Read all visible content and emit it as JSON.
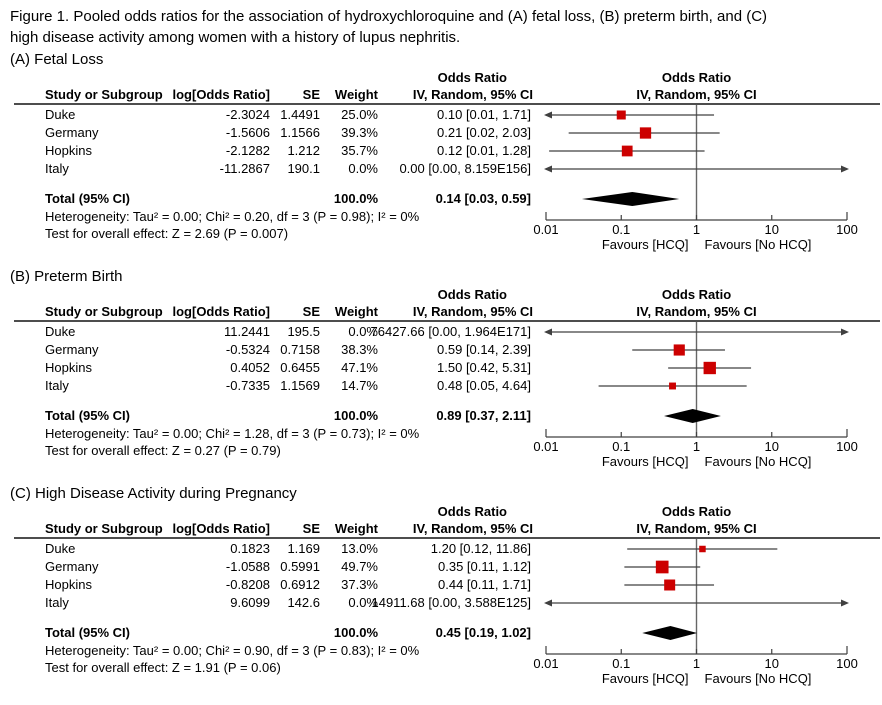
{
  "figure": {
    "title_line1": "Figure 1. Pooled odds ratios for the association of hydroxychloroquine and (A) fetal loss, (B) preterm birth, and (C)",
    "title_line2": "high disease activity among women with a history of lupus nephritis."
  },
  "table_headers": {
    "study": "Study or Subgroup",
    "log_or": "log[Odds Ratio]",
    "se": "SE",
    "weight": "Weight",
    "or_header": "Odds Ratio",
    "ci_method": "IV, Random, 95% CI"
  },
  "axis": {
    "tick_labels": [
      "0.01",
      "0.1",
      "1",
      "10",
      "100"
    ],
    "favours_left": "Favours [HCQ]",
    "favours_right": "Favours [No HCQ]"
  },
  "colors": {
    "square": "#CC0000",
    "diamond": "#000000",
    "line": "#404040",
    "null_line": "#666666",
    "rule": "#4D4D4D"
  },
  "panels": [
    {
      "label": "(A) Fetal Loss",
      "rows": [
        {
          "study": "Duke",
          "log_or": "-2.3024",
          "se": "1.4491",
          "weight": "25.0%",
          "ci": "0.10 [0.01, 1.71]"
        },
        {
          "study": "Germany",
          "log_or": "-1.5606",
          "se": "1.1566",
          "weight": "39.3%",
          "ci": "0.21 [0.02, 2.03]"
        },
        {
          "study": "Hopkins",
          "log_or": "-2.1282",
          "se": "1.212",
          "weight": "35.7%",
          "ci": "0.12 [0.01, 1.28]"
        },
        {
          "study": "Italy",
          "log_or": "-11.2867",
          "se": "190.1",
          "weight": "0.0%",
          "ci": "0.00 [0.00, 8.159E156]"
        }
      ],
      "total": {
        "label": "Total (95% CI)",
        "weight": "100.0%",
        "ci": "0.14 [0.03, 0.59]"
      },
      "heterogeneity": "Heterogeneity: Tau² = 0.00; Chi² = 0.20, df = 3 (P = 0.98); I² = 0%",
      "overall_effect": "Test for overall effect: Z = 2.69 (P = 0.007)"
    },
    {
      "label": "(B) Preterm Birth",
      "rows": [
        {
          "study": "Duke",
          "log_or": "11.2441",
          "se": "195.5",
          "weight": "0.0%",
          "ci": "76427.66 [0.00, 1.964E171]"
        },
        {
          "study": "Germany",
          "log_or": "-0.5324",
          "se": "0.7158",
          "weight": "38.3%",
          "ci": "0.59 [0.14, 2.39]"
        },
        {
          "study": "Hopkins",
          "log_or": "0.4052",
          "se": "0.6455",
          "weight": "47.1%",
          "ci": "1.50 [0.42, 5.31]"
        },
        {
          "study": "Italy",
          "log_or": "-0.7335",
          "se": "1.1569",
          "weight": "14.7%",
          "ci": "0.48 [0.05, 4.64]"
        }
      ],
      "total": {
        "label": "Total (95% CI)",
        "weight": "100.0%",
        "ci": "0.89 [0.37, 2.11]"
      },
      "heterogeneity": "Heterogeneity: Tau² = 0.00; Chi² = 1.28, df = 3 (P = 0.73); I² = 0%",
      "overall_effect": "Test for overall effect: Z = 0.27 (P = 0.79)"
    },
    {
      "label": "(C) High Disease Activity during Pregnancy",
      "rows": [
        {
          "study": "Duke",
          "log_or": "0.1823",
          "se": "1.169",
          "weight": "13.0%",
          "ci": "1.20 [0.12, 11.86]"
        },
        {
          "study": "Germany",
          "log_or": "-1.0588",
          "se": "0.5991",
          "weight": "49.7%",
          "ci": "0.35 [0.11, 1.12]"
        },
        {
          "study": "Hopkins",
          "log_or": "-0.8208",
          "se": "0.6912",
          "weight": "37.3%",
          "ci": "0.44 [0.11, 1.71]"
        },
        {
          "study": "Italy",
          "log_or": "9.6099",
          "se": "142.6",
          "weight": "0.0%",
          "ci": "14911.68 [0.00, 3.588E125]"
        }
      ],
      "total": {
        "label": "Total (95% CI)",
        "weight": "100.0%",
        "ci": "0.45 [0.19, 1.02]"
      },
      "heterogeneity": "Heterogeneity: Tau² = 0.00; Chi² = 0.90, df = 3 (P = 0.83); I² = 0%",
      "overall_effect": "Test for overall effect: Z = 1.91 (P = 0.06)"
    }
  ],
  "chart_data": [
    {
      "type": "forest",
      "title": "(A) Fetal Loss",
      "x_scale": "log10",
      "x_min": 0.01,
      "x_max": 100,
      "x_ticks": [
        0.01,
        0.1,
        1,
        10,
        100
      ],
      "null_value": 1,
      "studies": [
        {
          "name": "Duke",
          "or": 0.1,
          "ci_low": 0.01,
          "ci_high": 1.71,
          "weight": 25.0,
          "arrow_low": true,
          "arrow_high": false
        },
        {
          "name": "Germany",
          "or": 0.21,
          "ci_low": 0.02,
          "ci_high": 2.03,
          "weight": 39.3,
          "arrow_low": false,
          "arrow_high": false
        },
        {
          "name": "Hopkins",
          "or": 0.12,
          "ci_low": 0.011,
          "ci_high": 1.28,
          "weight": 35.7,
          "arrow_low": false,
          "arrow_high": false
        },
        {
          "name": "Italy",
          "or": null,
          "ci_low": null,
          "ci_high": null,
          "weight": 0.0,
          "arrow_low": true,
          "arrow_high": true
        }
      ],
      "total": {
        "or": 0.14,
        "ci_low": 0.03,
        "ci_high": 0.59
      }
    },
    {
      "type": "forest",
      "title": "(B) Preterm Birth",
      "x_scale": "log10",
      "x_min": 0.01,
      "x_max": 100,
      "x_ticks": [
        0.01,
        0.1,
        1,
        10,
        100
      ],
      "null_value": 1,
      "studies": [
        {
          "name": "Duke",
          "or": null,
          "ci_low": null,
          "ci_high": null,
          "weight": 0.0,
          "arrow_low": true,
          "arrow_high": true
        },
        {
          "name": "Germany",
          "or": 0.59,
          "ci_low": 0.14,
          "ci_high": 2.39,
          "weight": 38.3,
          "arrow_low": false,
          "arrow_high": false
        },
        {
          "name": "Hopkins",
          "or": 1.5,
          "ci_low": 0.42,
          "ci_high": 5.31,
          "weight": 47.1,
          "arrow_low": false,
          "arrow_high": false
        },
        {
          "name": "Italy",
          "or": 0.48,
          "ci_low": 0.05,
          "ci_high": 4.64,
          "weight": 14.7,
          "arrow_low": false,
          "arrow_high": false
        }
      ],
      "total": {
        "or": 0.89,
        "ci_low": 0.37,
        "ci_high": 2.11
      }
    },
    {
      "type": "forest",
      "title": "(C) High Disease Activity during Pregnancy",
      "x_scale": "log10",
      "x_min": 0.01,
      "x_max": 100,
      "x_ticks": [
        0.01,
        0.1,
        1,
        10,
        100
      ],
      "null_value": 1,
      "studies": [
        {
          "name": "Duke",
          "or": 1.2,
          "ci_low": 0.12,
          "ci_high": 11.86,
          "weight": 13.0,
          "arrow_low": false,
          "arrow_high": false
        },
        {
          "name": "Germany",
          "or": 0.35,
          "ci_low": 0.11,
          "ci_high": 1.12,
          "weight": 49.7,
          "arrow_low": false,
          "arrow_high": false
        },
        {
          "name": "Hopkins",
          "or": 0.44,
          "ci_low": 0.11,
          "ci_high": 1.71,
          "weight": 37.3,
          "arrow_low": false,
          "arrow_high": false
        },
        {
          "name": "Italy",
          "or": null,
          "ci_low": null,
          "ci_high": null,
          "weight": 0.0,
          "arrow_low": true,
          "arrow_high": true
        }
      ],
      "total": {
        "or": 0.45,
        "ci_low": 0.19,
        "ci_high": 1.02
      }
    }
  ]
}
